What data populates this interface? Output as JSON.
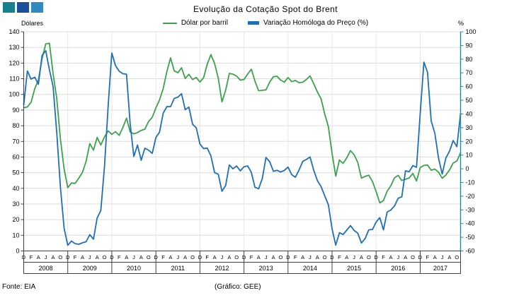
{
  "title": "Evolução da Cotação Spot do Brent",
  "logo": {
    "colors": [
      "#17808E",
      "#1B4F9C",
      "#2E8BC0"
    ]
  },
  "legend": [
    {
      "label": "Dólar por barril",
      "color": "#3BA24B"
    },
    {
      "label": "Variação Homóloga do Preço (%)",
      "color": "#1E6FB8"
    }
  ],
  "footer": {
    "source": "Fonte: EIA",
    "credit": "(Gráfico: GEE)"
  },
  "left_axis": {
    "title": "Dólares",
    "ticks": [
      0,
      10,
      20,
      30,
      40,
      50,
      60,
      70,
      80,
      90,
      100,
      110,
      120,
      130,
      140
    ]
  },
  "right_axis": {
    "title": "%",
    "ticks": [
      -60,
      -50,
      -40,
      -30,
      -20,
      -10,
      0,
      10,
      20,
      30,
      40,
      50,
      60,
      70,
      80,
      90,
      100
    ],
    "color": "#31859C"
  },
  "chart_data": {
    "type": "line",
    "title": "Evolução da Cotação Spot do Brent",
    "grid": true,
    "legend_position": "top",
    "left_ylim": [
      0,
      140
    ],
    "right_ylim": [
      -60,
      100
    ],
    "month_tick_pattern": [
      "D",
      "F",
      "A",
      "J",
      "A",
      "O"
    ],
    "years": [
      "2008",
      "2009",
      "2010",
      "2011",
      "2012",
      "2013",
      "2014",
      "2015",
      "2016",
      "2017"
    ],
    "series": [
      {
        "name": "Dólar por barril",
        "axis": "left",
        "color": "#3BA24B",
        "values": [
          91.5,
          92.0,
          95.0,
          103.7,
          109.1,
          122.8,
          132.3,
          132.7,
          113.2,
          97.2,
          71.6,
          52.5,
          40.4,
          43.4,
          43.1,
          46.5,
          50.2,
          57.3,
          68.6,
          64.4,
          72.5,
          67.7,
          72.8,
          76.7,
          74.5,
          76.2,
          73.8,
          78.8,
          84.8,
          76.0,
          74.8,
          75.6,
          77.0,
          77.8,
          82.7,
          85.3,
          91.4,
          96.5,
          103.7,
          114.6,
          123.3,
          115.0,
          113.8,
          117.0,
          110.2,
          112.8,
          109.5,
          110.8,
          107.9,
          110.7,
          119.3,
          125.4,
          119.7,
          110.3,
          95.2,
          102.6,
          113.4,
          112.9,
          111.7,
          109.1,
          109.5,
          113.0,
          116.1,
          108.5,
          102.3,
          102.6,
          102.9,
          107.9,
          111.3,
          111.6,
          109.1,
          107.8,
          110.8,
          108.1,
          108.9,
          107.5,
          107.8,
          109.5,
          111.8,
          106.8,
          101.6,
          97.1,
          87.4,
          79.4,
          62.3,
          47.8,
          58.1,
          55.9,
          59.5,
          64.1,
          61.5,
          56.6,
          46.5,
          47.6,
          48.4,
          44.3,
          38.0,
          30.7,
          32.2,
          38.2,
          41.6,
          46.7,
          48.3,
          45.0,
          45.8,
          46.6,
          49.5,
          44.7,
          53.3,
          54.6,
          54.9,
          51.6,
          52.3,
          50.3,
          46.4,
          48.5,
          51.7,
          56.2,
          57.5,
          62.7
        ]
      },
      {
        "name": "Variação Homóloga do Preço (%)",
        "axis": "right",
        "color": "#1E6FB8",
        "values": [
          46.7,
          71.4,
          65.4,
          66.8,
          61.6,
          82.7,
          86.2,
          72.3,
          60.1,
          26.0,
          -13.1,
          -43.2,
          -55.9,
          -52.8,
          -54.7,
          -55.1,
          -54.0,
          -53.3,
          -48.1,
          -51.4,
          -36.0,
          -30.4,
          1.7,
          46.2,
          84.5,
          75.3,
          71.2,
          69.4,
          69.0,
          32.5,
          9.0,
          17.3,
          6.2,
          15.0,
          13.6,
          11.2,
          22.8,
          26.7,
          40.6,
          45.4,
          45.3,
          51.4,
          52.3,
          54.8,
          43.1,
          45.0,
          32.5,
          29.9,
          18.0,
          14.7,
          15.1,
          9.4,
          -2.8,
          -4.0,
          -16.4,
          -12.3,
          2.8,
          0.0,
          2.0,
          -1.5,
          1.5,
          2.1,
          -2.7,
          -13.5,
          -14.6,
          -7.1,
          8.2,
          5.2,
          -1.8,
          -1.1,
          -2.4,
          -1.2,
          1.2,
          -4.3,
          -6.2,
          -0.9,
          5.4,
          6.8,
          8.6,
          -1.1,
          -8.7,
          -13.0,
          -19.8,
          -26.3,
          -43.7,
          -55.8,
          -46.7,
          -48.0,
          -44.8,
          -41.5,
          -45.0,
          -47.0,
          -54.2,
          -51.0,
          -44.6,
          -44.3,
          -39.0,
          -35.7,
          -44.6,
          -31.6,
          -30.1,
          -27.1,
          -21.5,
          -20.5,
          -1.5,
          -2.2,
          2.3,
          1.0,
          40.3,
          77.8,
          70.5,
          35.0,
          25.8,
          7.7,
          -3.9,
          7.9,
          12.8,
          20.6,
          16.1,
          40.2
        ]
      }
    ]
  }
}
